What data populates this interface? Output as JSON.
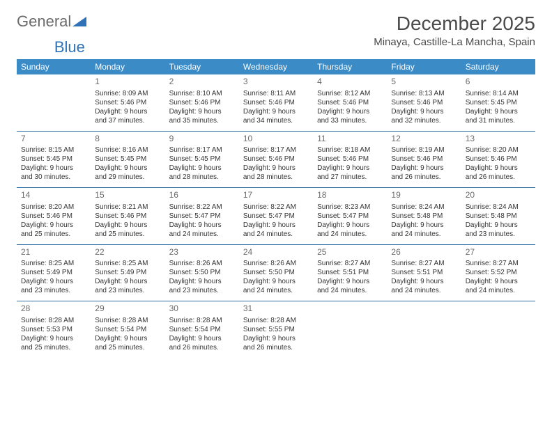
{
  "logo": {
    "text1": "General",
    "text2": "Blue"
  },
  "title": {
    "month": "December 2025",
    "location": "Minaya, Castille-La Mancha, Spain"
  },
  "colors": {
    "header_bg": "#3b8bc7",
    "header_text": "#ffffff",
    "border": "#2e6da4",
    "body_text": "#333333",
    "daynum": "#6b6b6b",
    "logo_general": "#6b6b6b",
    "logo_blue": "#2f72b7",
    "background": "#ffffff"
  },
  "weekdays": [
    "Sunday",
    "Monday",
    "Tuesday",
    "Wednesday",
    "Thursday",
    "Friday",
    "Saturday"
  ],
  "weeks": [
    [
      null,
      {
        "n": "1",
        "sr": "Sunrise: 8:09 AM",
        "ss": "Sunset: 5:46 PM",
        "dl": "Daylight: 9 hours and 37 minutes."
      },
      {
        "n": "2",
        "sr": "Sunrise: 8:10 AM",
        "ss": "Sunset: 5:46 PM",
        "dl": "Daylight: 9 hours and 35 minutes."
      },
      {
        "n": "3",
        "sr": "Sunrise: 8:11 AM",
        "ss": "Sunset: 5:46 PM",
        "dl": "Daylight: 9 hours and 34 minutes."
      },
      {
        "n": "4",
        "sr": "Sunrise: 8:12 AM",
        "ss": "Sunset: 5:46 PM",
        "dl": "Daylight: 9 hours and 33 minutes."
      },
      {
        "n": "5",
        "sr": "Sunrise: 8:13 AM",
        "ss": "Sunset: 5:46 PM",
        "dl": "Daylight: 9 hours and 32 minutes."
      },
      {
        "n": "6",
        "sr": "Sunrise: 8:14 AM",
        "ss": "Sunset: 5:45 PM",
        "dl": "Daylight: 9 hours and 31 minutes."
      }
    ],
    [
      {
        "n": "7",
        "sr": "Sunrise: 8:15 AM",
        "ss": "Sunset: 5:45 PM",
        "dl": "Daylight: 9 hours and 30 minutes."
      },
      {
        "n": "8",
        "sr": "Sunrise: 8:16 AM",
        "ss": "Sunset: 5:45 PM",
        "dl": "Daylight: 9 hours and 29 minutes."
      },
      {
        "n": "9",
        "sr": "Sunrise: 8:17 AM",
        "ss": "Sunset: 5:45 PM",
        "dl": "Daylight: 9 hours and 28 minutes."
      },
      {
        "n": "10",
        "sr": "Sunrise: 8:17 AM",
        "ss": "Sunset: 5:46 PM",
        "dl": "Daylight: 9 hours and 28 minutes."
      },
      {
        "n": "11",
        "sr": "Sunrise: 8:18 AM",
        "ss": "Sunset: 5:46 PM",
        "dl": "Daylight: 9 hours and 27 minutes."
      },
      {
        "n": "12",
        "sr": "Sunrise: 8:19 AM",
        "ss": "Sunset: 5:46 PM",
        "dl": "Daylight: 9 hours and 26 minutes."
      },
      {
        "n": "13",
        "sr": "Sunrise: 8:20 AM",
        "ss": "Sunset: 5:46 PM",
        "dl": "Daylight: 9 hours and 26 minutes."
      }
    ],
    [
      {
        "n": "14",
        "sr": "Sunrise: 8:20 AM",
        "ss": "Sunset: 5:46 PM",
        "dl": "Daylight: 9 hours and 25 minutes."
      },
      {
        "n": "15",
        "sr": "Sunrise: 8:21 AM",
        "ss": "Sunset: 5:46 PM",
        "dl": "Daylight: 9 hours and 25 minutes."
      },
      {
        "n": "16",
        "sr": "Sunrise: 8:22 AM",
        "ss": "Sunset: 5:47 PM",
        "dl": "Daylight: 9 hours and 24 minutes."
      },
      {
        "n": "17",
        "sr": "Sunrise: 8:22 AM",
        "ss": "Sunset: 5:47 PM",
        "dl": "Daylight: 9 hours and 24 minutes."
      },
      {
        "n": "18",
        "sr": "Sunrise: 8:23 AM",
        "ss": "Sunset: 5:47 PM",
        "dl": "Daylight: 9 hours and 24 minutes."
      },
      {
        "n": "19",
        "sr": "Sunrise: 8:24 AM",
        "ss": "Sunset: 5:48 PM",
        "dl": "Daylight: 9 hours and 24 minutes."
      },
      {
        "n": "20",
        "sr": "Sunrise: 8:24 AM",
        "ss": "Sunset: 5:48 PM",
        "dl": "Daylight: 9 hours and 23 minutes."
      }
    ],
    [
      {
        "n": "21",
        "sr": "Sunrise: 8:25 AM",
        "ss": "Sunset: 5:49 PM",
        "dl": "Daylight: 9 hours and 23 minutes."
      },
      {
        "n": "22",
        "sr": "Sunrise: 8:25 AM",
        "ss": "Sunset: 5:49 PM",
        "dl": "Daylight: 9 hours and 23 minutes."
      },
      {
        "n": "23",
        "sr": "Sunrise: 8:26 AM",
        "ss": "Sunset: 5:50 PM",
        "dl": "Daylight: 9 hours and 23 minutes."
      },
      {
        "n": "24",
        "sr": "Sunrise: 8:26 AM",
        "ss": "Sunset: 5:50 PM",
        "dl": "Daylight: 9 hours and 24 minutes."
      },
      {
        "n": "25",
        "sr": "Sunrise: 8:27 AM",
        "ss": "Sunset: 5:51 PM",
        "dl": "Daylight: 9 hours and 24 minutes."
      },
      {
        "n": "26",
        "sr": "Sunrise: 8:27 AM",
        "ss": "Sunset: 5:51 PM",
        "dl": "Daylight: 9 hours and 24 minutes."
      },
      {
        "n": "27",
        "sr": "Sunrise: 8:27 AM",
        "ss": "Sunset: 5:52 PM",
        "dl": "Daylight: 9 hours and 24 minutes."
      }
    ],
    [
      {
        "n": "28",
        "sr": "Sunrise: 8:28 AM",
        "ss": "Sunset: 5:53 PM",
        "dl": "Daylight: 9 hours and 25 minutes."
      },
      {
        "n": "29",
        "sr": "Sunrise: 8:28 AM",
        "ss": "Sunset: 5:54 PM",
        "dl": "Daylight: 9 hours and 25 minutes."
      },
      {
        "n": "30",
        "sr": "Sunrise: 8:28 AM",
        "ss": "Sunset: 5:54 PM",
        "dl": "Daylight: 9 hours and 26 minutes."
      },
      {
        "n": "31",
        "sr": "Sunrise: 8:28 AM",
        "ss": "Sunset: 5:55 PM",
        "dl": "Daylight: 9 hours and 26 minutes."
      },
      null,
      null,
      null
    ]
  ]
}
